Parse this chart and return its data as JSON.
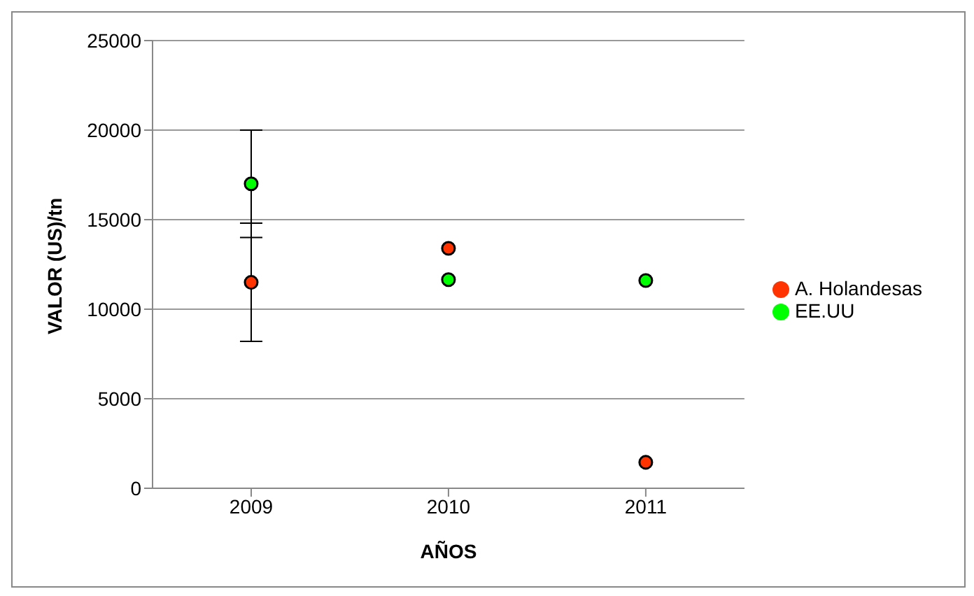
{
  "chart_data": {
    "type": "scatter",
    "xlabel": "AÑOS",
    "ylabel": "VALOR (US)/tn",
    "categories": [
      "2009",
      "2010",
      "2011"
    ],
    "series": [
      {
        "name": "A. Holandesas",
        "color": "#ff3300",
        "values": [
          11500,
          13400,
          1450
        ],
        "errors": [
          3300,
          null,
          null
        ]
      },
      {
        "name": "EE.UU",
        "color": "#00ff00",
        "values": [
          17000,
          11650,
          11600
        ],
        "errors": [
          3000,
          null,
          null
        ]
      }
    ],
    "ylim": [
      0,
      25000
    ],
    "yticks": [
      0,
      5000,
      10000,
      15000,
      20000,
      25000
    ],
    "grid": "y",
    "legend": "right",
    "marker": "circle"
  }
}
